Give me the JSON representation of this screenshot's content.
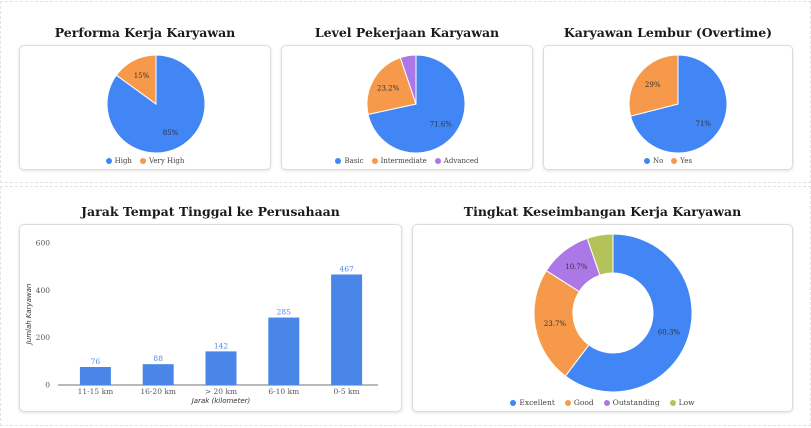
{
  "colors": {
    "blue": "#4285f4",
    "orange": "#f6994a",
    "purple": "#ac77e6",
    "green": "#b3c35a",
    "bar": "#4a86e8"
  },
  "performa": {
    "title": "Performa Kerja Karyawan",
    "chart_data": {
      "type": "pie",
      "labels": [
        "High",
        "Very High"
      ],
      "values": [
        85,
        15
      ],
      "slice_labels": [
        "85%",
        "15%"
      ]
    }
  },
  "level": {
    "title": "Level Pekerjaan Karyawan",
    "chart_data": {
      "type": "pie",
      "labels": [
        "Basic",
        "Intermediate",
        "Advanced"
      ],
      "values": [
        71.6,
        23.2,
        5.2
      ],
      "slice_labels": [
        "71.6%",
        "23.2%",
        ""
      ]
    }
  },
  "lembur": {
    "title": "Karyawan Lembur (Overtime)",
    "chart_data": {
      "type": "pie",
      "labels": [
        "No",
        "Yes"
      ],
      "values": [
        71,
        29
      ],
      "slice_labels": [
        "71%",
        "29%"
      ]
    }
  },
  "jarak": {
    "title": "Jarak Tempat Tinggal ke Perusahaan",
    "chart_data": {
      "type": "bar",
      "categories": [
        "11-15 km",
        "16-20 km",
        "> 20 km",
        "6-10 km",
        "0-5 km"
      ],
      "values": [
        76,
        88,
        142,
        285,
        467
      ],
      "ylim": [
        0,
        600
      ],
      "yticks": [
        0,
        200,
        400,
        600
      ],
      "xlabel": "Jarak (kilometer)",
      "ylabel": "Jumlah Karyawan"
    }
  },
  "keseimbangan": {
    "title": "Tingkat Keseimbangan Kerja Karyawan",
    "chart_data": {
      "type": "pie",
      "labels": [
        "Excellent",
        "Good",
        "Outstanding",
        "Low"
      ],
      "values": [
        60.3,
        23.7,
        10.7,
        5.3
      ],
      "slice_labels": [
        "60.3%",
        "23.7%",
        "10.7%",
        ""
      ]
    }
  }
}
